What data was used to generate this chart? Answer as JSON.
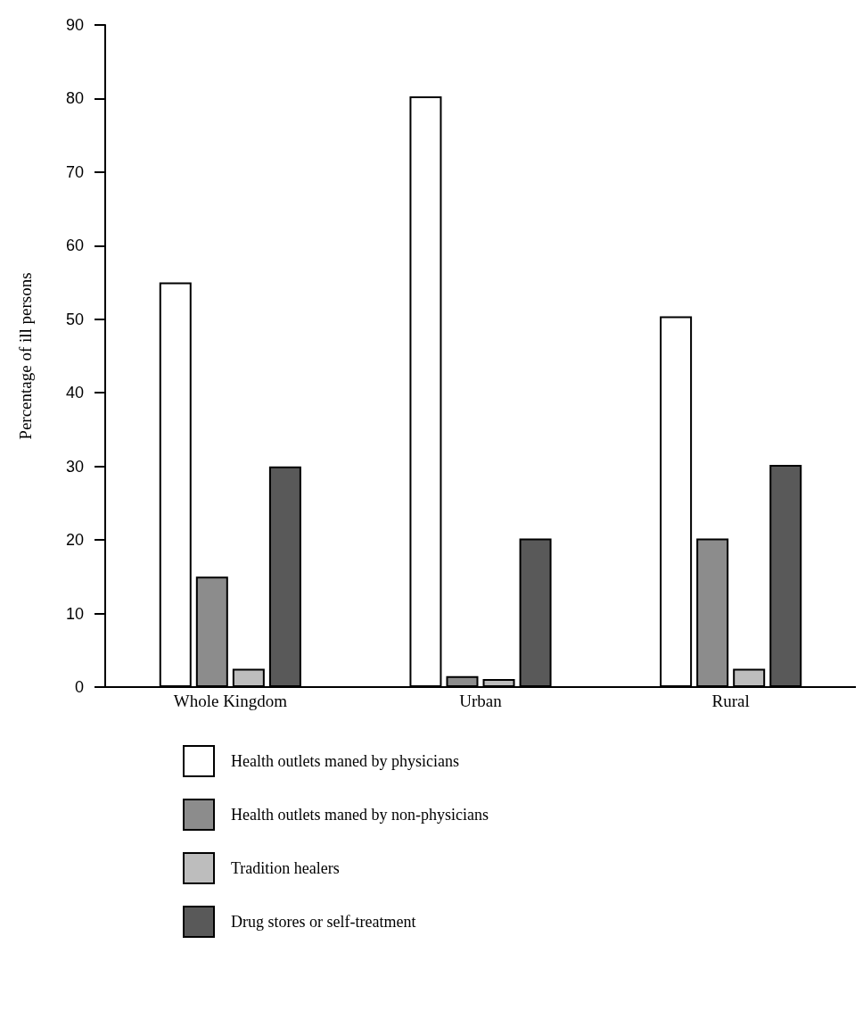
{
  "chart_data": {
    "type": "bar",
    "ylabel": "Percentage of ill persons",
    "categories": [
      "Whole Kingdom",
      "Urban",
      "Rural"
    ],
    "series": [
      {
        "name": "Health outlets maned by physicians",
        "color": "#ffffff",
        "values": [
          55,
          80.3,
          50.4
        ]
      },
      {
        "name": "Health outlets maned by non-physicians",
        "color": "#8c8c8c",
        "values": [
          15,
          1.5,
          20.2
        ]
      },
      {
        "name": "Tradition healers",
        "color": "#bdbdbd",
        "values": [
          2.5,
          1.1,
          2.5
        ]
      },
      {
        "name": "Drug stores or self-treatment",
        "color": "#595959",
        "values": [
          30,
          20.2,
          30.2
        ]
      }
    ],
    "ylim": [
      0,
      90
    ],
    "yticks": [
      0,
      10,
      20,
      30,
      40,
      50,
      60,
      70,
      80,
      90
    ],
    "grid": false,
    "legend": "bottom"
  }
}
